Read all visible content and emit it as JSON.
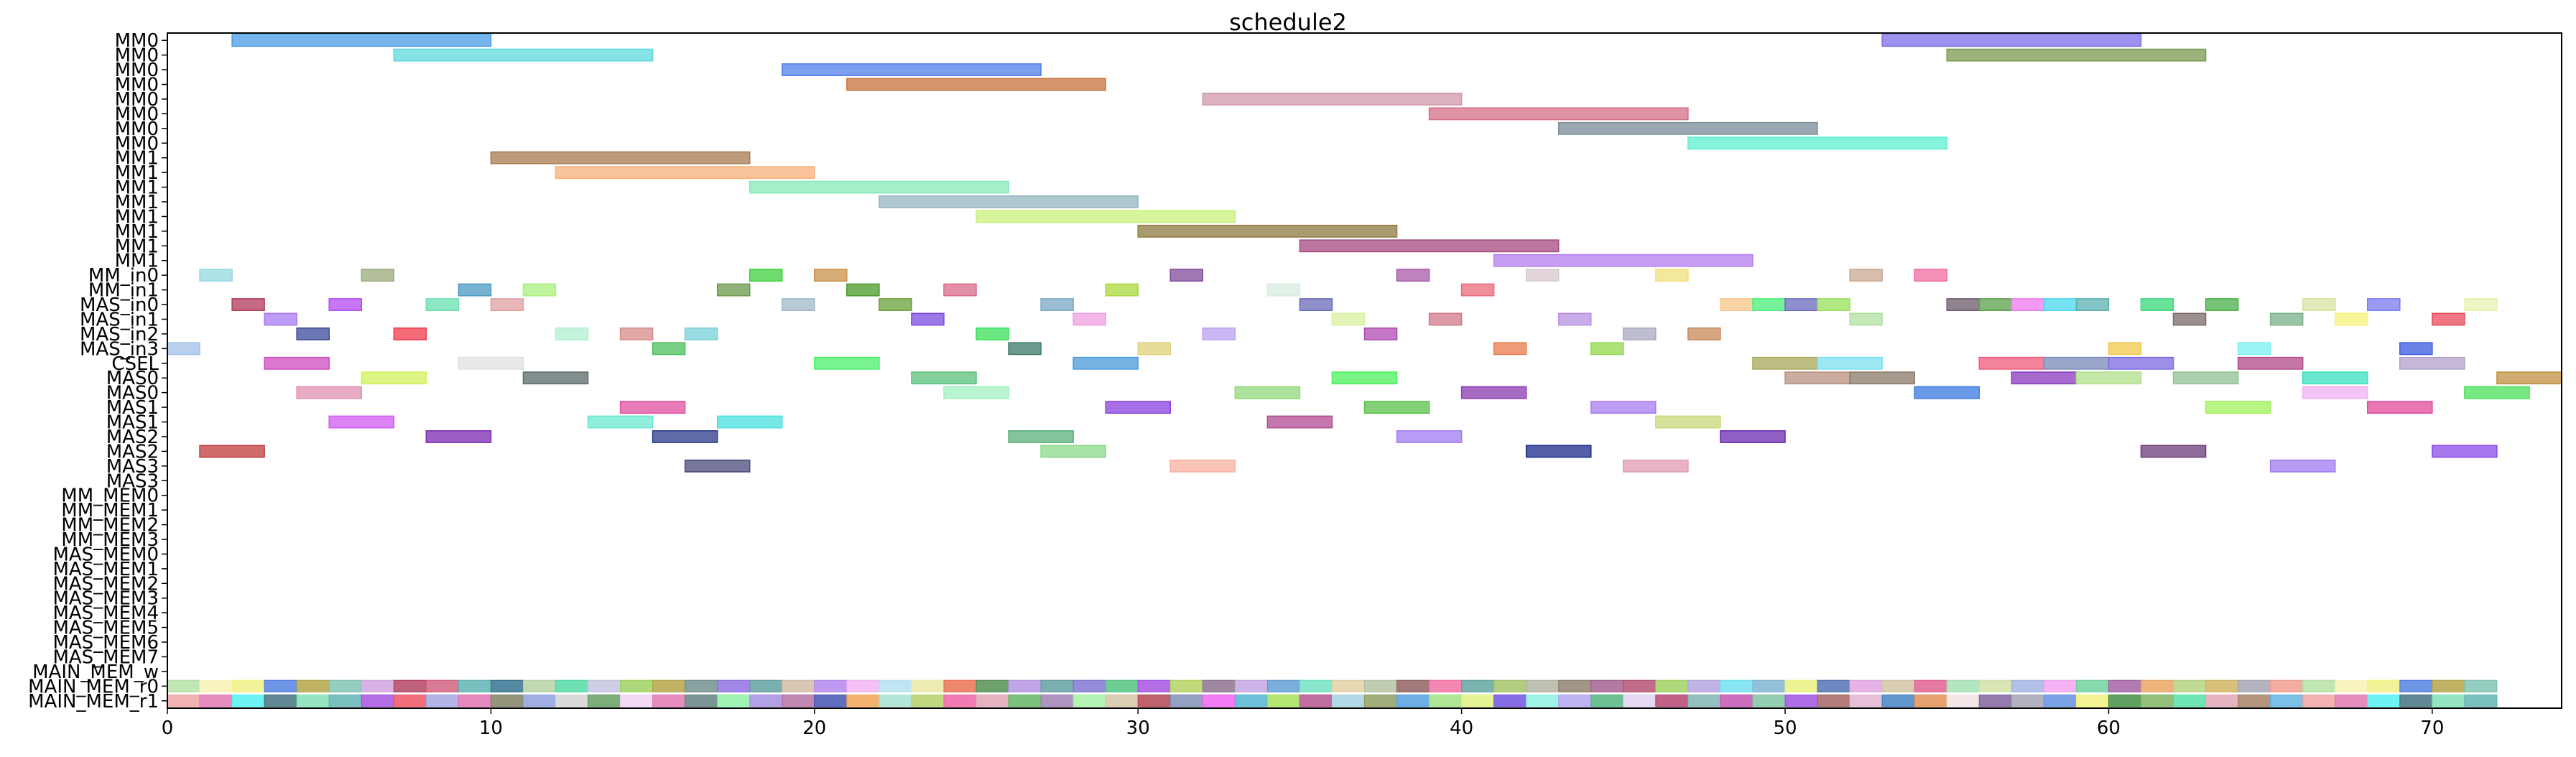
{
  "chart_data": {
    "type": "gantt",
    "title": "schedule2",
    "xlabel": "",
    "ylabel": "",
    "xlim": [
      0,
      74
    ],
    "x_ticks": [
      0,
      10,
      20,
      30,
      40,
      50,
      60,
      70
    ],
    "grid": false,
    "rows": [
      "MM0",
      "MM0",
      "MM0",
      "MM0",
      "MM0",
      "MM0",
      "MM0",
      "MM0",
      "MM1",
      "MM1",
      "MM1",
      "MM1",
      "MM1",
      "MM1",
      "MM1",
      "MM1",
      "MM_in0",
      "MM_in1",
      "MAS_in0",
      "MAS_in1",
      "MAS_in2",
      "MAS_in3",
      "CSEL",
      "MAS0",
      "MAS0",
      "MAS1",
      "MAS1",
      "MAS2",
      "MAS2",
      "MAS3",
      "MAS3",
      "MM_MEM0",
      "MM_MEM1",
      "MM_MEM2",
      "MM_MEM3",
      "MAS_MEM0",
      "MAS_MEM1",
      "MAS_MEM2",
      "MAS_MEM3",
      "MAS_MEM4",
      "MAS_MEM5",
      "MAS_MEM6",
      "MAS_MEM7",
      "MAIN_MEM_w",
      "MAIN_MEM_r0",
      "MAIN_MEM_r1"
    ],
    "tasks": [
      {
        "row": 0,
        "start": 2,
        "end": 10,
        "color": "#4a9de6"
      },
      {
        "row": 0,
        "start": 53,
        "end": 61,
        "color": "#7b6fe8"
      },
      {
        "row": 1,
        "start": 7,
        "end": 15,
        "color": "#5fd8dd"
      },
      {
        "row": 1,
        "start": 55,
        "end": 63,
        "color": "#7a9a4e"
      },
      {
        "row": 2,
        "start": 19,
        "end": 27,
        "color": "#4f7de9"
      },
      {
        "row": 3,
        "start": 21,
        "end": 29,
        "color": "#c8743e"
      },
      {
        "row": 4,
        "start": 32,
        "end": 40,
        "color": "#cf97a8"
      },
      {
        "row": 5,
        "start": 39,
        "end": 47,
        "color": "#d46e84"
      },
      {
        "row": 6,
        "start": 43,
        "end": 51,
        "color": "#7a8e98"
      },
      {
        "row": 7,
        "start": 47,
        "end": 55,
        "color": "#5ef0d0"
      },
      {
        "row": 8,
        "start": 10,
        "end": 18,
        "color": "#a87a4f"
      },
      {
        "row": 9,
        "start": 12,
        "end": 20,
        "color": "#f7b07a"
      },
      {
        "row": 10,
        "start": 18,
        "end": 26,
        "color": "#86e8b8"
      },
      {
        "row": 11,
        "start": 22,
        "end": 30,
        "color": "#93b5c0"
      },
      {
        "row": 12,
        "start": 25,
        "end": 33,
        "color": "#c9f07a"
      },
      {
        "row": 13,
        "start": 30,
        "end": 38,
        "color": "#8e7a3e"
      },
      {
        "row": 14,
        "start": 35,
        "end": 43,
        "color": "#a64a7e"
      },
      {
        "row": 15,
        "start": 41,
        "end": 49,
        "color": "#b57ef0"
      },
      {
        "row": 16,
        "start": 1,
        "end": 2,
        "color": "#93d8e0"
      },
      {
        "row": 16,
        "start": 6,
        "end": 7,
        "color": "#9aab7a"
      },
      {
        "row": 16,
        "start": 18,
        "end": 19,
        "color": "#3ccf3c"
      },
      {
        "row": 16,
        "start": 20,
        "end": 21,
        "color": "#c8904a"
      },
      {
        "row": 16,
        "start": 31,
        "end": 32,
        "color": "#7e4a9a"
      },
      {
        "row": 16,
        "start": 38,
        "end": 39,
        "color": "#a85aa8"
      },
      {
        "row": 16,
        "start": 42,
        "end": 43,
        "color": "#d8c8d0"
      },
      {
        "row": 16,
        "start": 46,
        "end": 47,
        "color": "#f0e07a"
      },
      {
        "row": 16,
        "start": 52,
        "end": 53,
        "color": "#c8a890"
      },
      {
        "row": 16,
        "start": 54,
        "end": 55,
        "color": "#f06aa0"
      },
      {
        "row": 17,
        "start": 9,
        "end": 10,
        "color": "#4a9ac0"
      },
      {
        "row": 17,
        "start": 11,
        "end": 12,
        "color": "#a8f07a"
      },
      {
        "row": 17,
        "start": 17,
        "end": 18,
        "color": "#6a9a4a"
      },
      {
        "row": 17,
        "start": 21,
        "end": 22,
        "color": "#4a9a2a"
      },
      {
        "row": 17,
        "start": 24,
        "end": 25,
        "color": "#d86a8a"
      },
      {
        "row": 17,
        "start": 29,
        "end": 30,
        "color": "#a8d83a"
      },
      {
        "row": 17,
        "start": 34,
        "end": 35,
        "color": "#d8ece0"
      },
      {
        "row": 17,
        "start": 40,
        "end": 41,
        "color": "#e86a7a"
      },
      {
        "row": 18,
        "start": 2,
        "end": 3,
        "color": "#b03a5a"
      },
      {
        "row": 18,
        "start": 5,
        "end": 6,
        "color": "#b44af0"
      },
      {
        "row": 18,
        "start": 8,
        "end": 9,
        "color": "#6ae0b0"
      },
      {
        "row": 18,
        "start": 10,
        "end": 11,
        "color": "#e0a0a0"
      },
      {
        "row": 18,
        "start": 19,
        "end": 20,
        "color": "#a0b8c8"
      },
      {
        "row": 18,
        "start": 22,
        "end": 23,
        "color": "#6aa03a"
      },
      {
        "row": 18,
        "start": 27,
        "end": 28,
        "color": "#7aa8c8"
      },
      {
        "row": 18,
        "start": 35,
        "end": 36,
        "color": "#6a6ab8"
      },
      {
        "row": 18,
        "start": 48,
        "end": 49,
        "color": "#f8c888"
      },
      {
        "row": 18,
        "start": 49,
        "end": 50,
        "color": "#4af07a"
      },
      {
        "row": 18,
        "start": 50,
        "end": 51,
        "color": "#6a6ac0"
      },
      {
        "row": 18,
        "start": 51,
        "end": 52,
        "color": "#98e05a"
      },
      {
        "row": 18,
        "start": 55,
        "end": 56,
        "color": "#6a5a6a"
      },
      {
        "row": 18,
        "start": 56,
        "end": 57,
        "color": "#5aa04a"
      },
      {
        "row": 18,
        "start": 57,
        "end": 58,
        "color": "#f07af0"
      },
      {
        "row": 18,
        "start": 58,
        "end": 59,
        "color": "#4ad8f0"
      },
      {
        "row": 18,
        "start": 59,
        "end": 60,
        "color": "#5ab0b0"
      },
      {
        "row": 18,
        "start": 61,
        "end": 62,
        "color": "#3ad87a"
      },
      {
        "row": 18,
        "start": 63,
        "end": 64,
        "color": "#4ab04a"
      },
      {
        "row": 18,
        "start": 66,
        "end": 67,
        "color": "#d8e0a0"
      },
      {
        "row": 18,
        "start": 68,
        "end": 69,
        "color": "#7a7af0"
      },
      {
        "row": 18,
        "start": 71,
        "end": 72,
        "color": "#e8f0b0"
      },
      {
        "row": 19,
        "start": 3,
        "end": 4,
        "color": "#a87af0"
      },
      {
        "row": 19,
        "start": 23,
        "end": 24,
        "color": "#7a4ae0"
      },
      {
        "row": 19,
        "start": 28,
        "end": 29,
        "color": "#f0a0e0"
      },
      {
        "row": 19,
        "start": 36,
        "end": 37,
        "color": "#d8f0a0"
      },
      {
        "row": 19,
        "start": 39,
        "end": 40,
        "color": "#d07a8a"
      },
      {
        "row": 19,
        "start": 43,
        "end": 44,
        "color": "#b890e0"
      },
      {
        "row": 19,
        "start": 52,
        "end": 53,
        "color": "#b0e0a0"
      },
      {
        "row": 19,
        "start": 62,
        "end": 63,
        "color": "#7a6a6a"
      },
      {
        "row": 19,
        "start": 65,
        "end": 66,
        "color": "#7ab08a"
      },
      {
        "row": 19,
        "start": 67,
        "end": 68,
        "color": "#f8f07a"
      },
      {
        "row": 19,
        "start": 70,
        "end": 71,
        "color": "#e84a5a"
      },
      {
        "row": 20,
        "start": 4,
        "end": 5,
        "color": "#3a4a9a"
      },
      {
        "row": 20,
        "start": 7,
        "end": 8,
        "color": "#f03a4a"
      },
      {
        "row": 20,
        "start": 12,
        "end": 13,
        "color": "#b0f0d0"
      },
      {
        "row": 20,
        "start": 14,
        "end": 15,
        "color": "#d88a8a"
      },
      {
        "row": 20,
        "start": 16,
        "end": 17,
        "color": "#7ad0d8"
      },
      {
        "row": 20,
        "start": 25,
        "end": 26,
        "color": "#3ae05a"
      },
      {
        "row": 20,
        "start": 32,
        "end": 33,
        "color": "#b8a0f0"
      },
      {
        "row": 20,
        "start": 37,
        "end": 38,
        "color": "#b04ab0"
      },
      {
        "row": 20,
        "start": 45,
        "end": 46,
        "color": "#a8a8c0"
      },
      {
        "row": 20,
        "start": 47,
        "end": 48,
        "color": "#c8885a"
      },
      {
        "row": 21,
        "start": 0,
        "end": 1,
        "color": "#a0c0e8"
      },
      {
        "row": 21,
        "start": 15,
        "end": 16,
        "color": "#4ac05a"
      },
      {
        "row": 21,
        "start": 26,
        "end": 27,
        "color": "#3a7a6a"
      },
      {
        "row": 21,
        "start": 30,
        "end": 31,
        "color": "#e0d07a"
      },
      {
        "row": 21,
        "start": 41,
        "end": 42,
        "color": "#e87a4a"
      },
      {
        "row": 21,
        "start": 44,
        "end": 45,
        "color": "#90d84a"
      },
      {
        "row": 21,
        "start": 60,
        "end": 61,
        "color": "#f0c84a"
      },
      {
        "row": 21,
        "start": 64,
        "end": 65,
        "color": "#7af0f0"
      },
      {
        "row": 21,
        "start": 69,
        "end": 70,
        "color": "#3a5ae0"
      },
      {
        "row": 22,
        "start": 3,
        "end": 5,
        "color": "#d04ac0"
      },
      {
        "row": 22,
        "start": 9,
        "end": 11,
        "color": "#e0e0e0"
      },
      {
        "row": 22,
        "start": 20,
        "end": 22,
        "color": "#4af06a"
      },
      {
        "row": 22,
        "start": 28,
        "end": 30,
        "color": "#4a9ad8"
      },
      {
        "row": 22,
        "start": 49,
        "end": 51,
        "color": "#a8a85a"
      },
      {
        "row": 22,
        "start": 51,
        "end": 53,
        "color": "#7ae0f0"
      },
      {
        "row": 22,
        "start": 56,
        "end": 58,
        "color": "#f05a7a"
      },
      {
        "row": 22,
        "start": 58,
        "end": 60,
        "color": "#7a8ab8"
      },
      {
        "row": 22,
        "start": 60,
        "end": 62,
        "color": "#7a6ae0"
      },
      {
        "row": 22,
        "start": 64,
        "end": 66,
        "color": "#b04a8a"
      },
      {
        "row": 22,
        "start": 69,
        "end": 71,
        "color": "#b0a0c8"
      },
      {
        "row": 23,
        "start": 6,
        "end": 8,
        "color": "#d0f05a"
      },
      {
        "row": 23,
        "start": 11,
        "end": 13,
        "color": "#5a6a6a"
      },
      {
        "row": 23,
        "start": 23,
        "end": 25,
        "color": "#5ac07a"
      },
      {
        "row": 23,
        "start": 36,
        "end": 38,
        "color": "#4af05a"
      },
      {
        "row": 23,
        "start": 50,
        "end": 52,
        "color": "#b89080"
      },
      {
        "row": 23,
        "start": 52,
        "end": 54,
        "color": "#8a7a6a"
      },
      {
        "row": 23,
        "start": 57,
        "end": 59,
        "color": "#8a3ac0"
      },
      {
        "row": 23,
        "start": 59,
        "end": 61,
        "color": "#b0e08a"
      },
      {
        "row": 23,
        "start": 62,
        "end": 64,
        "color": "#90c090"
      },
      {
        "row": 23,
        "start": 66,
        "end": 68,
        "color": "#3ae0c0"
      },
      {
        "row": 23,
        "start": 72,
        "end": 74,
        "color": "#c09040"
      },
      {
        "row": 24,
        "start": 4,
        "end": 6,
        "color": "#e090b0"
      },
      {
        "row": 24,
        "start": 24,
        "end": 26,
        "color": "#a0f0c0"
      },
      {
        "row": 24,
        "start": 33,
        "end": 35,
        "color": "#90d87a"
      },
      {
        "row": 24,
        "start": 40,
        "end": 42,
        "color": "#8a3ab0"
      },
      {
        "row": 24,
        "start": 54,
        "end": 56,
        "color": "#3a7ae0"
      },
      {
        "row": 24,
        "start": 66,
        "end": 68,
        "color": "#f0b0f0"
      },
      {
        "row": 24,
        "start": 71,
        "end": 73,
        "color": "#4ae05a"
      },
      {
        "row": 25,
        "start": 14,
        "end": 16,
        "color": "#e050a0"
      },
      {
        "row": 25,
        "start": 29,
        "end": 31,
        "color": "#8a40e0"
      },
      {
        "row": 25,
        "start": 37,
        "end": 39,
        "color": "#5ac04a"
      },
      {
        "row": 25,
        "start": 44,
        "end": 46,
        "color": "#a87af0"
      },
      {
        "row": 25,
        "start": 63,
        "end": 65,
        "color": "#a0f05a"
      },
      {
        "row": 25,
        "start": 68,
        "end": 70,
        "color": "#e04a9a"
      },
      {
        "row": 26,
        "start": 5,
        "end": 7,
        "color": "#d05af0"
      },
      {
        "row": 26,
        "start": 13,
        "end": 15,
        "color": "#6ae8d0"
      },
      {
        "row": 26,
        "start": 17,
        "end": 19,
        "color": "#4ae0e0"
      },
      {
        "row": 26,
        "start": 34,
        "end": 36,
        "color": "#b04a90"
      },
      {
        "row": 26,
        "start": 46,
        "end": 48,
        "color": "#c8d87a"
      },
      {
        "row": 27,
        "start": 8,
        "end": 10,
        "color": "#7a2ab0"
      },
      {
        "row": 27,
        "start": 15,
        "end": 17,
        "color": "#2a3a8a"
      },
      {
        "row": 27,
        "start": 26,
        "end": 28,
        "color": "#5ab07a"
      },
      {
        "row": 27,
        "start": 38,
        "end": 40,
        "color": "#a07af0"
      },
      {
        "row": 27,
        "start": 48,
        "end": 50,
        "color": "#6a2ab0"
      },
      {
        "row": 28,
        "start": 1,
        "end": 3,
        "color": "#c03a3a"
      },
      {
        "row": 28,
        "start": 27,
        "end": 29,
        "color": "#8ad88a"
      },
      {
        "row": 28,
        "start": 42,
        "end": 44,
        "color": "#1a2a8a"
      },
      {
        "row": 28,
        "start": 61,
        "end": 63,
        "color": "#6a3a7a"
      },
      {
        "row": 28,
        "start": 70,
        "end": 72,
        "color": "#8a4ae8"
      },
      {
        "row": 29,
        "start": 16,
        "end": 18,
        "color": "#4a4a7a"
      },
      {
        "row": 29,
        "start": 31,
        "end": 33,
        "color": "#f8b0a0"
      },
      {
        "row": 29,
        "start": 45,
        "end": 47,
        "color": "#e09ab0"
      },
      {
        "row": 29,
        "start": 65,
        "end": 67,
        "color": "#a07af0"
      }
    ],
    "memory_tasks": {
      "colors_w": [
        "#b0e0a0",
        "#f8f0b0",
        "#f0f080",
        "#4a7ae0",
        "#b0a040",
        "#7ac0b0",
        "#d0a0e0",
        "#b03a5a",
        "#d05a7a",
        "#5ab0b0",
        "#2a6a8a",
        "#b0d0a0",
        "#4ad8a0",
        "#c0c0e0",
        "#9ad05a",
        "#b0a040",
        "#6a8a8a",
        "#8a6ae0",
        "#5a9a9a",
        "#d0b8a0",
        "#b080f0",
        "#f0b0f0",
        "#b0e0f0",
        "#e8e8a0",
        "#e86a4a",
        "#4a8a4a",
        "#b090e0",
        "#5a9a9a",
        "#7a70d0",
        "#4ac07a",
        "#a04ae0",
        "#b0d05a",
        "#8a6a8a",
        "#c0a0e0",
        "#5a9ad0",
        "#6ae0c0",
        "#e0d0a0",
        "#b0c0a0",
        "#8a5a5a",
        "#f06aa0",
        "#5aa09a",
        "#a0c060",
        "#b0b0a0",
        "#8a7a6a",
        "#a05a8a",
        "#b04a6a",
        "#9ad05a",
        "#b0a0e0",
        "#6ae0f0",
        "#7ab0d0",
        "#e8f07a",
        "#4a6ab0",
        "#e0a0e0",
        "#d0c0a0",
        "#e05a8a",
        "#a0e0b0",
        "#d0e0a0",
        "#a0b0e0",
        "#f0a0f0",
        "#6ad09a",
        "#a05aa0",
        "#e8a05a",
        "#b0d07a",
        "#d0b05a",
        "#a0a0b0",
        "#f09a8a"
      ],
      "colors_r0": [
        "#f0a0a0",
        "#e070b0",
        "#4af0f0",
        "#3a6a7a",
        "#7ae0b0",
        "#5ab0b0",
        "#a04ae0",
        "#f04a5a",
        "#a0a0e0",
        "#e06ab0",
        "#7a7a5a",
        "#8a9ae0",
        "#d0d0d0",
        "#5a9a5a",
        "#f0d0f0",
        "#e070b0",
        "#5a7a7a",
        "#8af0a0",
        "#a08ae0",
        "#b06aa0",
        "#3a4ab0",
        "#f0a04a",
        "#a0e0d0",
        "#b0d060",
        "#f05aa0",
        "#e0a0b0",
        "#5ab05a",
        "#9a7ab0",
        "#a0f0a0",
        "#d0c0a0",
        "#b03a4a",
        "#7a8ab0",
        "#f05af0",
        "#4ab0d0",
        "#a0e050",
        "#b04a8a",
        "#a0d0e0",
        "#8a9a5a",
        "#4a9ae0",
        "#9ae07a",
        "#e0f07a",
        "#6a4ae0",
        "#8af0e0",
        "#b0a0f0",
        "#4ab07a",
        "#e0d0f0",
        "#b03a6a",
        "#7ab0b0",
        "#c04ab0",
        "#7ac0a0",
        "#9a4ae0",
        "#a05a5a",
        "#e0b0d0",
        "#3a7ac0",
        "#e08a4a",
        "#f0e0e0",
        "#7a5a9a",
        "#a0a0b0",
        "#5a8ae0",
        "#f0f07a",
        "#3a8a3a",
        "#7ab05a",
        "#4ae0a0",
        "#e0a0b0",
        "#a07a5a",
        "#5ab0e0"
      ]
    }
  }
}
